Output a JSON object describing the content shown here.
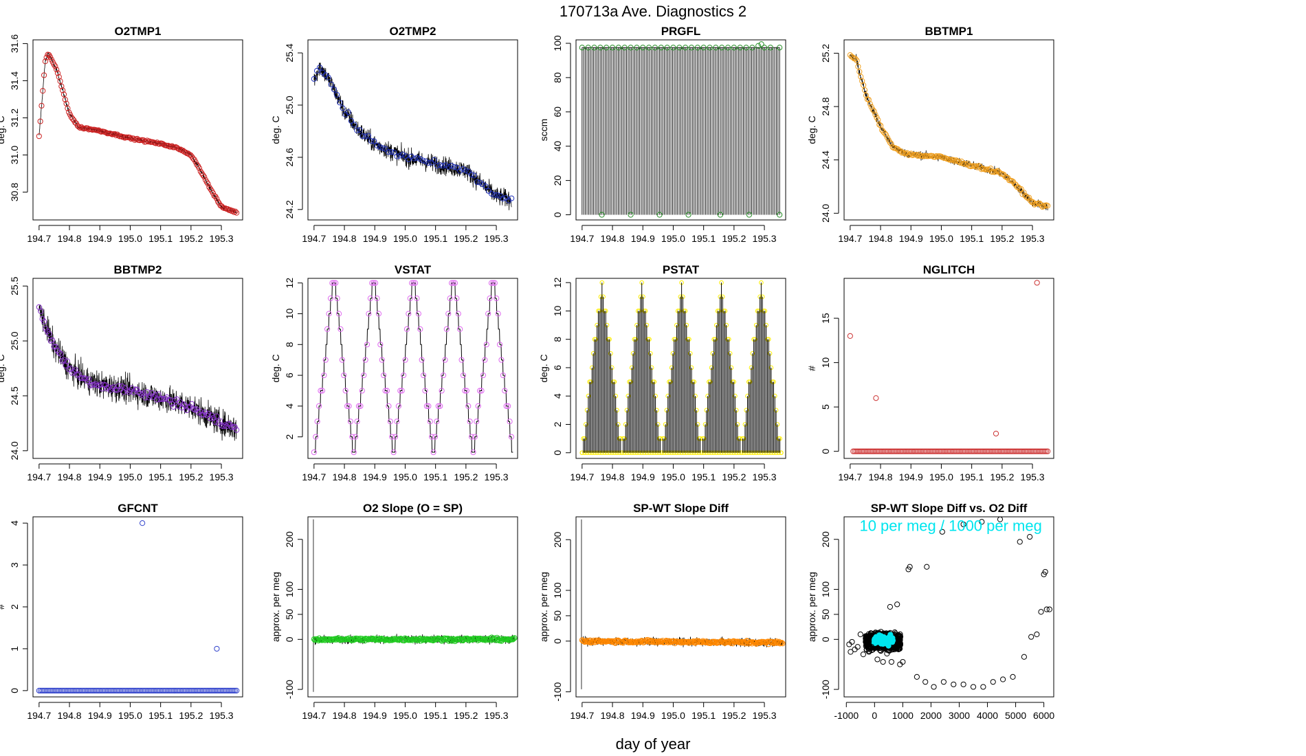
{
  "page": {
    "title": "170713a   Ave. Diagnostics 2",
    "xlabel": "day of year"
  },
  "colors": {
    "frame": "#000000",
    "line": "#000000",
    "annotation": "#00e5ee"
  },
  "chart_data": [
    {
      "id": "o2tmp1",
      "type": "line",
      "title": "O2TMP1",
      "ylabel": "deg. C",
      "xlim": [
        194.68,
        195.37
      ],
      "ylim": [
        30.65,
        31.62
      ],
      "xticks": [
        194.7,
        194.8,
        194.9,
        195.0,
        195.1,
        195.2,
        195.3
      ],
      "xtick_labels": [
        "194.7",
        "194.8",
        "194.9",
        "195.0",
        "195.1",
        "195.2",
        "195.3"
      ],
      "yticks": [
        30.8,
        31.0,
        31.2,
        31.4,
        31.6
      ],
      "ytick_labels": [
        "30.8",
        "31.0",
        "31.2",
        "31.4",
        "31.6"
      ],
      "marker_color": "#cc2222",
      "noise": 0.012,
      "x": [
        194.7,
        194.72,
        194.73,
        194.76,
        194.8,
        194.83,
        194.9,
        195.0,
        195.1,
        195.15,
        195.2,
        195.22,
        195.27,
        195.3,
        195.35
      ],
      "y": [
        31.1,
        31.5,
        31.55,
        31.45,
        31.22,
        31.15,
        31.13,
        31.09,
        31.06,
        31.04,
        31.0,
        30.95,
        30.8,
        30.72,
        30.69
      ],
      "markers": {
        "mode": "sample",
        "n": 160
      }
    },
    {
      "id": "o2tmp2",
      "type": "line",
      "title": "O2TMP2",
      "ylabel": "deg. C",
      "xlim": [
        194.68,
        195.37
      ],
      "ylim": [
        24.12,
        25.5
      ],
      "xticks": [
        194.7,
        194.8,
        194.9,
        195.0,
        195.1,
        195.2,
        195.3
      ],
      "xtick_labels": [
        "194.7",
        "194.8",
        "194.9",
        "195.0",
        "195.1",
        "195.2",
        "195.3"
      ],
      "yticks": [
        24.2,
        24.6,
        25.0,
        25.4
      ],
      "ytick_labels": [
        "24.2",
        "24.6",
        "25.0",
        "25.4"
      ],
      "marker_color": "#2233bb",
      "noise": 0.07,
      "x": [
        194.7,
        194.72,
        194.76,
        194.8,
        194.85,
        194.9,
        195.0,
        195.1,
        195.2,
        195.3,
        195.35
      ],
      "y": [
        25.2,
        25.3,
        25.15,
        24.95,
        24.8,
        24.7,
        24.6,
        24.55,
        24.5,
        24.3,
        24.28
      ],
      "markers": {
        "mode": "sample",
        "n": 70
      }
    },
    {
      "id": "prgfl",
      "type": "line",
      "title": "PRGFL",
      "ylabel": "sccm",
      "xlim": [
        194.68,
        195.37
      ],
      "ylim": [
        -3,
        102
      ],
      "xticks": [
        194.7,
        194.8,
        194.9,
        195.0,
        195.1,
        195.2,
        195.3
      ],
      "xtick_labels": [
        "194.7",
        "194.8",
        "194.9",
        "195.0",
        "195.1",
        "195.2",
        "195.3"
      ],
      "yticks": [
        0,
        20,
        40,
        60,
        80,
        100
      ],
      "ytick_labels": [
        "0",
        "20",
        "40",
        "60",
        "80",
        "100"
      ],
      "marker_color": "#228b22",
      "x": [
        194.7,
        195.35
      ],
      "y": [
        97.5,
        97.5
      ],
      "spikes": {
        "n": 120,
        "top": 97.5,
        "bottom": 0
      },
      "markers": {
        "mode": "list",
        "x": [
          194.7,
          194.72,
          194.74,
          194.76,
          194.78,
          194.8,
          194.82,
          194.84,
          194.86,
          194.88,
          194.9,
          194.92,
          194.94,
          194.96,
          194.98,
          195.0,
          195.02,
          195.04,
          195.06,
          195.08,
          195.1,
          195.12,
          195.14,
          195.16,
          195.18,
          195.2,
          195.22,
          195.24,
          195.26,
          195.28,
          195.29,
          195.3,
          195.32,
          195.35,
          194.765,
          194.86,
          194.955,
          195.05,
          195.155,
          195.25,
          195.35
        ],
        "y": [
          97.5,
          97.5,
          97.5,
          97.5,
          97.5,
          97.5,
          97.5,
          97.5,
          97.5,
          97.5,
          97.5,
          97.5,
          97.5,
          97.5,
          97.5,
          97.5,
          97.5,
          97.5,
          97.5,
          97.5,
          97.5,
          97.5,
          97.5,
          97.5,
          97.5,
          97.5,
          97.5,
          97.5,
          97.5,
          98.5,
          99.5,
          97.5,
          97.5,
          97.5,
          0,
          0,
          0,
          0,
          0,
          0,
          0
        ]
      }
    },
    {
      "id": "bbtmp1",
      "type": "line",
      "title": "BBTMP1",
      "ylabel": "deg. C",
      "xlim": [
        194.68,
        195.37
      ],
      "ylim": [
        23.95,
        25.3
      ],
      "xticks": [
        194.7,
        194.8,
        194.9,
        195.0,
        195.1,
        195.2,
        195.3
      ],
      "xtick_labels": [
        "194.7",
        "194.8",
        "194.9",
        "195.0",
        "195.1",
        "195.2",
        "195.3"
      ],
      "yticks": [
        24.0,
        24.4,
        24.8,
        25.2
      ],
      "ytick_labels": [
        "24.0",
        "24.4",
        "24.8",
        "25.2"
      ],
      "marker_color": "#f0a020",
      "noise": 0.03,
      "x": [
        194.7,
        194.72,
        194.75,
        194.8,
        194.84,
        194.88,
        194.9,
        195.0,
        195.1,
        195.2,
        195.25,
        195.3,
        195.35
      ],
      "y": [
        25.18,
        25.15,
        24.9,
        24.65,
        24.5,
        24.45,
        24.44,
        24.42,
        24.36,
        24.3,
        24.2,
        24.08,
        24.05
      ],
      "markers": {
        "mode": "sample",
        "n": 150
      }
    },
    {
      "id": "bbtmp2",
      "type": "line",
      "title": "BBTMP2",
      "ylabel": "deg. C",
      "xlim": [
        194.68,
        195.37
      ],
      "ylim": [
        23.93,
        25.57
      ],
      "xticks": [
        194.7,
        194.8,
        194.9,
        195.0,
        195.1,
        195.2,
        195.3
      ],
      "xtick_labels": [
        "194.7",
        "194.8",
        "194.9",
        "195.0",
        "195.1",
        "195.2",
        "195.3"
      ],
      "yticks": [
        24.0,
        24.5,
        25.0,
        25.5
      ],
      "ytick_labels": [
        "24.0",
        "24.5",
        "25.0",
        "25.5"
      ],
      "marker_color": "#8833cc",
      "noise": 0.12,
      "x": [
        194.7,
        194.72,
        194.75,
        194.8,
        194.85,
        194.9,
        195.0,
        195.1,
        195.2,
        195.3,
        195.35
      ],
      "y": [
        25.3,
        25.15,
        24.95,
        24.75,
        24.65,
        24.6,
        24.55,
        24.48,
        24.4,
        24.25,
        24.2
      ],
      "markers": {
        "mode": "sample",
        "n": 120
      }
    },
    {
      "id": "vstat",
      "type": "line",
      "title": "VSTAT",
      "ylabel": "deg. C",
      "xlim": [
        194.68,
        195.37
      ],
      "ylim": [
        0.6,
        12.3
      ],
      "xticks": [
        194.7,
        194.8,
        194.9,
        195.0,
        195.1,
        195.2,
        195.3
      ],
      "xtick_labels": [
        "194.7",
        "194.8",
        "194.9",
        "195.0",
        "195.1",
        "195.2",
        "195.3"
      ],
      "yticks": [
        2,
        4,
        6,
        8,
        10,
        12
      ],
      "ytick_labels": [
        "2",
        "4",
        "6",
        "8",
        "10",
        "12"
      ],
      "marker_color": "#dd66ee",
      "stairs": {
        "start": 194.7,
        "end": 195.355,
        "cycles": 5,
        "min": 1,
        "max": 12
      },
      "markers": {
        "mode": "stairs"
      }
    },
    {
      "id": "pstat",
      "type": "line",
      "title": "PSTAT",
      "ylabel": "deg. C",
      "xlim": [
        194.68,
        195.37
      ],
      "ylim": [
        -0.4,
        12.3
      ],
      "xticks": [
        194.7,
        194.8,
        194.9,
        195.0,
        195.1,
        195.2,
        195.3
      ],
      "xtick_labels": [
        "194.7",
        "194.8",
        "194.9",
        "195.0",
        "195.1",
        "195.2",
        "195.3"
      ],
      "yticks": [
        0,
        2,
        4,
        6,
        8,
        10,
        12
      ],
      "ytick_labels": [
        "0",
        "2",
        "4",
        "6",
        "8",
        "10",
        "12"
      ],
      "marker_color": "#ffee00",
      "tri": {
        "start": 194.7,
        "end": 195.355,
        "cycles": 5,
        "min": 0,
        "max": 12
      },
      "markers": {
        "mode": "tri"
      }
    },
    {
      "id": "nglitch",
      "type": "scatter",
      "title": "NGLITCH",
      "ylabel": "#",
      "xlim": [
        194.68,
        195.37
      ],
      "ylim": [
        -0.8,
        19.5
      ],
      "xticks": [
        194.7,
        194.8,
        194.9,
        195.0,
        195.1,
        195.2,
        195.3
      ],
      "xtick_labels": [
        "194.7",
        "194.8",
        "194.9",
        "195.0",
        "195.1",
        "195.2",
        "195.3"
      ],
      "yticks": [
        0,
        5,
        10,
        15
      ],
      "ytick_labels": [
        "0",
        "5",
        "10",
        "15"
      ],
      "marker_color": "#cc3333",
      "markers": {
        "mode": "baseline",
        "n": 130,
        "x0": 194.71,
        "x1": 195.35,
        "base": 0,
        "outliers": {
          "x": [
            194.7,
            194.785,
            195.18,
            195.315
          ],
          "y": [
            13,
            6,
            2,
            19
          ]
        }
      }
    },
    {
      "id": "gfcnt",
      "type": "scatter",
      "title": "GFCNT",
      "ylabel": "#",
      "xlim": [
        194.68,
        195.37
      ],
      "ylim": [
        -0.15,
        4.15
      ],
      "xticks": [
        194.7,
        194.8,
        194.9,
        195.0,
        195.1,
        195.2,
        195.3
      ],
      "xtick_labels": [
        "194.7",
        "194.8",
        "194.9",
        "195.0",
        "195.1",
        "195.2",
        "195.3"
      ],
      "yticks": [
        0,
        1,
        2,
        3,
        4
      ],
      "ytick_labels": [
        "0",
        "1",
        "2",
        "3",
        "4"
      ],
      "marker_color": "#3344cc",
      "markers": {
        "mode": "baseline",
        "n": 130,
        "x0": 194.7,
        "x1": 195.35,
        "base": 0,
        "outliers": {
          "x": [
            195.04,
            195.285
          ],
          "y": [
            4,
            1
          ]
        }
      }
    },
    {
      "id": "o2slope",
      "type": "line",
      "title": "O2 Slope (O = SP)",
      "ylabel": "approx. per meg",
      "xlim": [
        194.68,
        195.37
      ],
      "ylim": [
        -115,
        245
      ],
      "xticks": [
        194.7,
        194.8,
        194.9,
        195.0,
        195.1,
        195.2,
        195.3
      ],
      "xtick_labels": [
        "194.7",
        "194.8",
        "194.9",
        "195.0",
        "195.1",
        "195.2",
        "195.3"
      ],
      "yticks": [
        -100,
        0,
        50,
        100,
        200
      ],
      "ytick_labels": [
        "-100",
        "0",
        "50",
        "100",
        "200"
      ],
      "marker_color": "#22cc22",
      "noise": 8,
      "x": [
        194.7,
        195.36
      ],
      "y": [
        0,
        0
      ],
      "spike": {
        "x": 194.698,
        "high": 240,
        "low": -105
      },
      "markers": {
        "mode": "sample",
        "n": 230
      }
    },
    {
      "id": "spwtdiff",
      "type": "line",
      "title": "SP-WT Slope Diff",
      "ylabel": "approx. per meg",
      "xlim": [
        194.68,
        195.37
      ],
      "ylim": [
        -110,
        245
      ],
      "xticks": [
        194.7,
        194.8,
        194.9,
        195.0,
        195.1,
        195.2,
        195.3
      ],
      "xtick_labels": [
        "194.7",
        "194.8",
        "194.9",
        "195.0",
        "195.1",
        "195.2",
        "195.3"
      ],
      "yticks": [
        -100,
        0,
        50,
        100,
        200
      ],
      "ytick_labels": [
        "-100",
        "0",
        "50",
        "100",
        "200"
      ],
      "marker_color": "#ff8800",
      "noise": 8,
      "x": [
        194.7,
        195.36
      ],
      "y": [
        0,
        -3
      ],
      "spike": {
        "x": 194.698,
        "high": 240,
        "low": -95
      },
      "markers": {
        "mode": "sample",
        "n": 230
      }
    },
    {
      "id": "spwtvso2",
      "type": "scatter",
      "title": "SP-WT Slope Diff vs. O2 Diff",
      "ylabel": "approx. per meg",
      "xlim": [
        -1080,
        6350
      ],
      "ylim": [
        -115,
        245
      ],
      "xticks": [
        -1000,
        0,
        1000,
        2000,
        3000,
        4000,
        5000,
        6000
      ],
      "xtick_labels": [
        "-1000",
        "0",
        "1000",
        "2000",
        "3000",
        "4000",
        "5000",
        "6000"
      ],
      "yticks": [
        -100,
        0,
        50,
        100,
        200
      ],
      "ytick_labels": [
        "-100",
        "0",
        "50",
        "100",
        "200"
      ],
      "marker_color": "#000000",
      "annotation": {
        "text": "10 per meg / 1000 per meg",
        "x": 2700,
        "y": 217
      },
      "points": {
        "x": [
          -900,
          -850,
          -800,
          -700,
          -600,
          -500,
          -400,
          -300,
          -200,
          -100,
          100,
          300,
          550,
          600,
          800,
          900,
          1000,
          1200,
          1500,
          1800,
          2100,
          2450,
          2800,
          3150,
          3500,
          3850,
          4200,
          4550,
          4900,
          5300,
          5550,
          5750,
          5900,
          6000,
          6050,
          6100,
          6200,
          1250,
          1850,
          2400,
          3150,
          3800,
          4450,
          5150,
          5500,
          700,
          850
        ],
        "y": [
          -10,
          -25,
          -5,
          -20,
          -15,
          10,
          -30,
          5,
          -25,
          -15,
          -40,
          -45,
          65,
          -45,
          70,
          -50,
          -45,
          140,
          -75,
          -85,
          -95,
          -85,
          -90,
          -90,
          -95,
          -95,
          -85,
          -80,
          -75,
          -35,
          5,
          10,
          55,
          130,
          135,
          60,
          60,
          145,
          145,
          215,
          230,
          235,
          240,
          195,
          205,
          -20,
          -20
        ]
      },
      "cluster": {
        "xcenter": 300,
        "xspread": 620,
        "ycenter": -4,
        "yspread": 16,
        "n": 650
      },
      "cyan_cluster": {
        "xcenter": 320,
        "xspread": 330,
        "ycenter": -2,
        "yspread": 9,
        "n": 60
      }
    }
  ]
}
